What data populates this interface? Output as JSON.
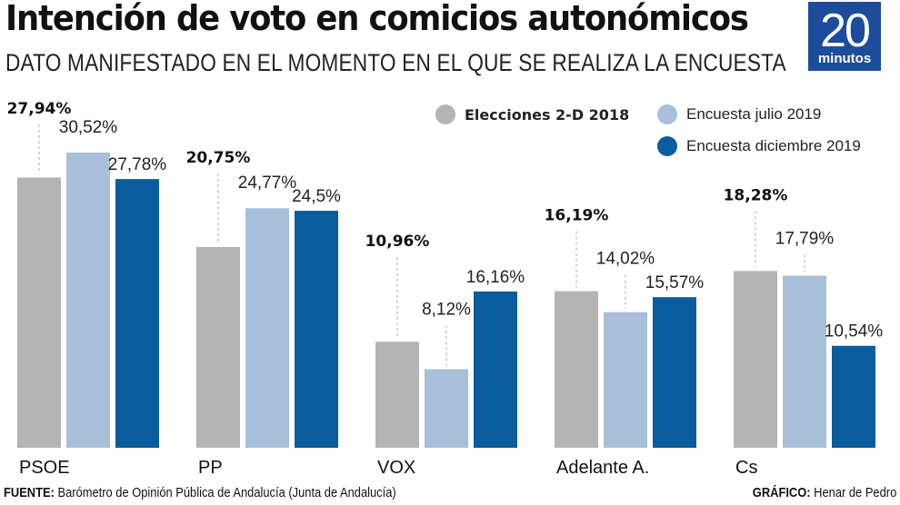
{
  "header": {
    "title": "Intención de voto en comicios autonómicos",
    "subtitle": "DATO MANIFESTADO EN EL MOMENTO EN EL QUE SE REALIZA LA ENCUESTA"
  },
  "logo": {
    "number": "20",
    "word": "minutos",
    "color": "#1d4c9c"
  },
  "footer": {
    "source_label": "FUENTE:",
    "source_text": " Barómetro de Opinión Pública de Andalucía (Junta de Andalucía)",
    "credit_label": "GRÁFICO:",
    "credit_text": " Henar de Pedro"
  },
  "chart_data": {
    "type": "bar",
    "title": "Intención de voto en comicios autonómicos",
    "subtitle": "DATO MANIFESTADO EN EL MOMENTO EN EL QUE SE REALIZA LA ENCUESTA",
    "xlabel": "",
    "ylabel": "",
    "ylim": [
      0,
      31
    ],
    "grid": false,
    "legend_position": "top-right",
    "categories": [
      "PSOE",
      "PP",
      "VOX",
      "Adelante A.",
      "Cs"
    ],
    "series": [
      {
        "name": "Elecciones 2-D 2018",
        "color": "#b4b4b4",
        "bold_labels": true,
        "values": [
          27.94,
          20.75,
          10.96,
          16.19,
          18.28
        ],
        "labels": [
          "27,94%",
          "20,75%",
          "10,96%",
          "16,19%",
          "18,28%"
        ]
      },
      {
        "name": "Encuesta julio 2019",
        "color": "#a8bfd9",
        "bold_labels": false,
        "values": [
          30.52,
          24.77,
          8.12,
          14.02,
          17.79
        ],
        "labels": [
          "30,52%",
          "24,77%",
          "8,12%",
          "14,02%",
          "17,79%"
        ]
      },
      {
        "name": "Encuesta diciembre 2019",
        "color": "#0b5c9c",
        "bold_labels": false,
        "values": [
          27.78,
          24.5,
          16.16,
          15.57,
          10.54
        ],
        "labels": [
          "27,78%",
          "24,5%",
          "16,16%",
          "15,57%",
          "10,54%"
        ]
      }
    ]
  }
}
